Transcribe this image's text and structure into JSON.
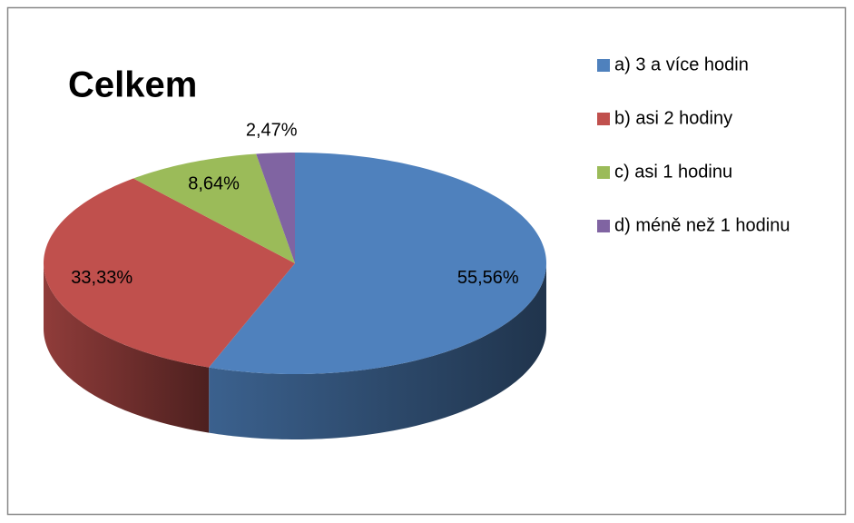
{
  "chart_data": {
    "type": "pie",
    "title": "Celkem",
    "categories": [
      "a) 3 a více hodin",
      "b) asi 2 hodiny",
      "c) asi 1 hodinu",
      "d) méně než 1 hodinu"
    ],
    "values": [
      55.56,
      33.33,
      8.64,
      2.47
    ],
    "value_labels": [
      "55,56%",
      "33,33%",
      "8,64%",
      "2,47%"
    ],
    "colors": [
      "#4f81bd",
      "#c0504d",
      "#9bbb59",
      "#8064a2"
    ],
    "legend": "right"
  }
}
